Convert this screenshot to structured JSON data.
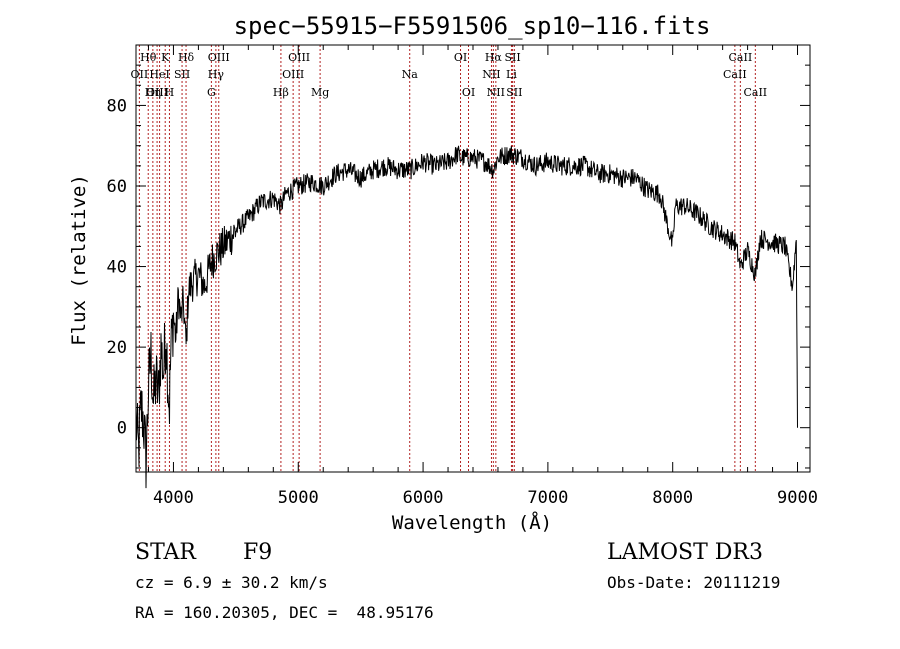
{
  "chart_data": {
    "type": "line",
    "title": "spec−55915−F5591506_sp10−116.fits",
    "xlabel": "Wavelength (Å)",
    "ylabel": "Flux (relative)",
    "xlim": [
      3700,
      9100
    ],
    "ylim": [
      -11,
      95
    ],
    "xticks": [
      4000,
      5000,
      6000,
      7000,
      8000,
      9000
    ],
    "yticks": [
      0,
      20,
      40,
      60,
      80
    ],
    "grid": false,
    "series": [
      {
        "name": "spectrum",
        "x": [
          3700,
          3720,
          3740,
          3760,
          3780,
          3800,
          3820,
          3840,
          3860,
          3880,
          3900,
          3920,
          3940,
          3960,
          3968,
          3980,
          4000,
          4020,
          4040,
          4060,
          4080,
          4101,
          4120,
          4150,
          4200,
          4250,
          4300,
          4340,
          4400,
          4500,
          4600,
          4700,
          4800,
          4861,
          4900,
          5000,
          5100,
          5200,
          5300,
          5400,
          5500,
          5600,
          5700,
          5800,
          5900,
          6000,
          6100,
          6200,
          6280,
          6300,
          6400,
          6500,
          6563,
          6600,
          6700,
          6800,
          6900,
          7000,
          7100,
          7200,
          7300,
          7400,
          7500,
          7600,
          7700,
          7800,
          7900,
          8000,
          8020,
          8100,
          8200,
          8300,
          8400,
          8498,
          8542,
          8600,
          8662,
          8700,
          8800,
          8900,
          8960,
          8990,
          9000
        ],
        "y": [
          2,
          -6,
          5,
          2,
          -8,
          10,
          18,
          6,
          12,
          8,
          20,
          14,
          24,
          9,
          6,
          19,
          28,
          22,
          33,
          27,
          31,
          20,
          34,
          36,
          38,
          35,
          41,
          43,
          45,
          49,
          52,
          56,
          57,
          55,
          58,
          60,
          61,
          60,
          63,
          64,
          62,
          64,
          65,
          64,
          64,
          66,
          65,
          66,
          68,
          67,
          67,
          66,
          64,
          67,
          68,
          67,
          65,
          66,
          65,
          65,
          65,
          63,
          63,
          62,
          62,
          59,
          58,
          45,
          55,
          55,
          53,
          50,
          48,
          46,
          40,
          44,
          38,
          47,
          46,
          45,
          35,
          47,
          0
        ]
      }
    ],
    "lines": [
      {
        "label": "Hθ",
        "x": 3798,
        "row": 0
      },
      {
        "label": "OII",
        "x": 3727,
        "row": 1
      },
      {
        "label": "OIII",
        "x": 3869,
        "row": 2
      },
      {
        "label": "Hη",
        "x": 3835,
        "row": 2
      },
      {
        "label": "HeI",
        "x": 3889,
        "row": 1
      },
      {
        "label": "K",
        "x": 3934,
        "row": 0
      },
      {
        "label": "H",
        "x": 3968,
        "row": 2
      },
      {
        "label": "SII",
        "x": 4069,
        "row": 1
      },
      {
        "label": "Hδ",
        "x": 4101,
        "row": 0
      },
      {
        "label": "OIII",
        "x": 4363,
        "row": 0
      },
      {
        "label": "Hγ",
        "x": 4340,
        "row": 1
      },
      {
        "label": "G",
        "x": 4304,
        "row": 2
      },
      {
        "label": "Hβ",
        "x": 4861,
        "row": 2
      },
      {
        "label": "OIII",
        "x": 5007,
        "row": 0
      },
      {
        "label": "OIII",
        "x": 4959,
        "row": 1
      },
      {
        "label": "Mg",
        "x": 5175,
        "row": 2
      },
      {
        "label": "Na",
        "x": 5893,
        "row": 1
      },
      {
        "label": "OI",
        "x": 6300,
        "row": 0
      },
      {
        "label": "OI",
        "x": 6364,
        "row": 2
      },
      {
        "label": "Hα",
        "x": 6563,
        "row": 0
      },
      {
        "label": "NII",
        "x": 6548,
        "row": 1
      },
      {
        "label": "NII",
        "x": 6583,
        "row": 2
      },
      {
        "label": "SII",
        "x": 6717,
        "row": 0
      },
      {
        "label": "Li",
        "x": 6708,
        "row": 1
      },
      {
        "label": "SII",
        "x": 6731,
        "row": 2
      },
      {
        "label": "CaII",
        "x": 8542,
        "row": 0
      },
      {
        "label": "CaII",
        "x": 8498,
        "row": 1
      },
      {
        "label": "CaII",
        "x": 8662,
        "row": 2
      }
    ]
  },
  "info": {
    "class_label": "STAR",
    "subclass": "F9",
    "cz": "cz = 6.9 ± 30.2 km/s",
    "radec": "RA = 160.20305, DEC =  48.95176",
    "survey": "LAMOST DR3",
    "obs_date": "Obs-Date: 20111219"
  }
}
